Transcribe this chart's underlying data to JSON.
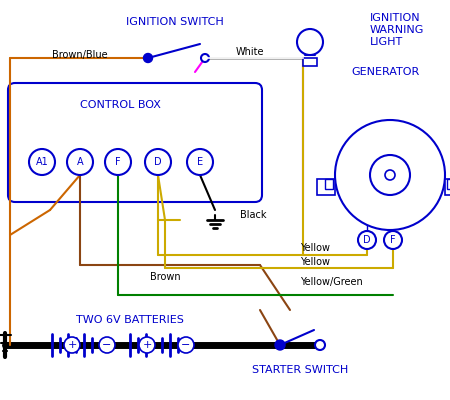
{
  "bg": "#ffffff",
  "blue": "#0000cc",
  "brown_wire": "#8B4513",
  "green": "#008000",
  "yellow": "#ccaa00",
  "black": "#000000",
  "magenta": "#ff00ff",
  "orange": "#cc6600",
  "control_box_label": "CONTROL BOX",
  "ignition_switch_label": "IGNITION SWITCH",
  "ignition_warning_label": "IGNITION\nWARNING\nLIGHT",
  "generator_label": "GENERATOR",
  "two_batt_label": "TWO 6V BATTERIES",
  "starter_label": "STARTER SWITCH",
  "brown_blue_label": "Brown/Blue",
  "white_label": "White",
  "black_label": "Black",
  "yellow_label1": "Yellow",
  "yellow_label2": "Yellow",
  "yellow_green_label": "Yellow/Green",
  "brown_label": "Brown",
  "terminals": [
    "A1",
    "A",
    "F",
    "D",
    "E"
  ]
}
